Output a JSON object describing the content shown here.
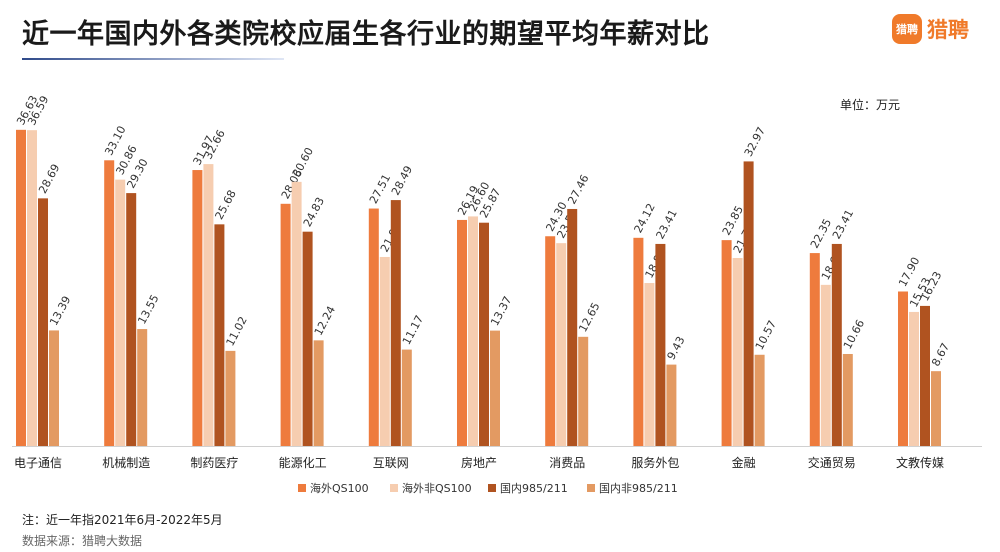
{
  "title": "近一年国内外各类院校应届生各行业的期望平均年薪对比",
  "logo": {
    "badge_text": "猎聘",
    "text": "猎聘",
    "icon": "liepin-logo-icon"
  },
  "unit_label": "单位：万元",
  "note": "注：近一年指2021年6月-2022年5月",
  "source": "数据来源：猎聘大数据",
  "colors": {
    "series": [
      "#ee7b3d",
      "#f6cdb0",
      "#b05320",
      "#e39a62"
    ],
    "title_rule": "#2f4a8a"
  },
  "chart_data": {
    "type": "bar",
    "title": "近一年国内外各类院校应届生各行业的期望平均年薪对比",
    "xlabel": "",
    "ylabel": "",
    "unit": "万元",
    "ylim": [
      0,
      38
    ],
    "grid": false,
    "legend_position": "bottom",
    "categories": [
      "电子通信",
      "机械制造",
      "制药医疗",
      "能源化工",
      "互联网",
      "房地产",
      "消费品",
      "服务外包",
      "金融",
      "交通贸易",
      "文教传媒"
    ],
    "series": [
      {
        "name": "海外QS100",
        "values": [
          36.63,
          33.1,
          31.97,
          28.06,
          27.51,
          26.19,
          24.3,
          24.12,
          23.85,
          22.35,
          17.9
        ]
      },
      {
        "name": "海外非QS100",
        "values": [
          36.59,
          30.86,
          32.66,
          30.6,
          21.9,
          26.6,
          23.5,
          18.88,
          21.78,
          18.67,
          15.53
        ]
      },
      {
        "name": "国内985/211",
        "values": [
          28.69,
          29.3,
          25.68,
          24.83,
          28.49,
          25.87,
          27.46,
          23.41,
          32.97,
          23.41,
          16.23
        ]
      },
      {
        "name": "国内非985/211",
        "values": [
          13.39,
          13.55,
          11.02,
          12.24,
          11.17,
          13.37,
          12.65,
          9.43,
          10.57,
          10.66,
          8.67
        ]
      }
    ]
  }
}
